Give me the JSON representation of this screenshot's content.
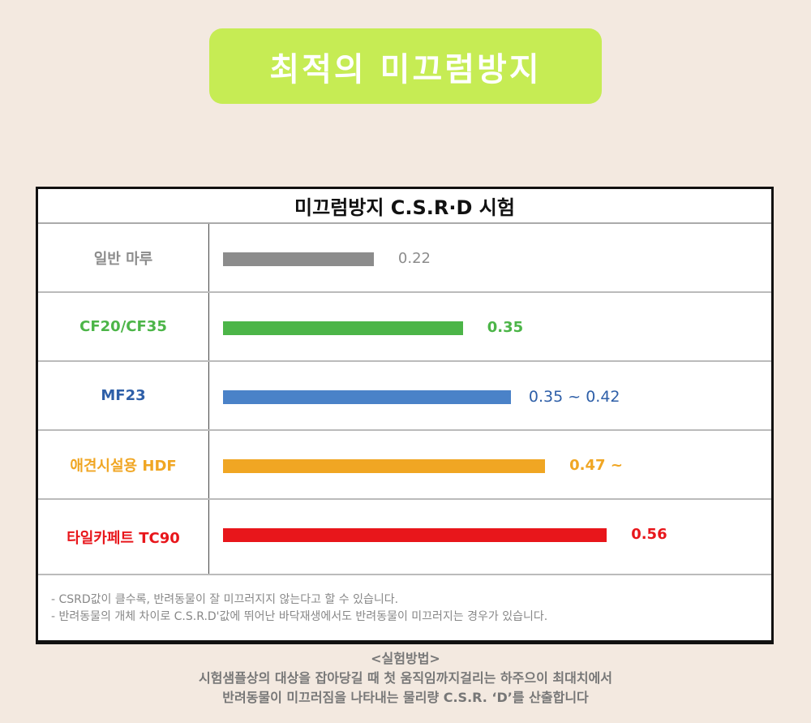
{
  "banner": {
    "title": "최적의 미끄럼방지"
  },
  "chart_data": {
    "type": "bar",
    "orientation": "horizontal",
    "title": "미끄럼방지 C.S.R·D  시험",
    "categories": [
      "일반 마루",
      "CF20/CF35",
      "MF23",
      "애견시설용 HDF",
      "타일카페트 TC90"
    ],
    "values": [
      0.22,
      0.35,
      0.42,
      0.47,
      0.56
    ],
    "data_labels": [
      "0.22",
      "0.35",
      "0.35 ~ 0.42",
      "0.47 ~",
      "0.56"
    ],
    "colors": [
      "#8c8c8c",
      "#4cb548",
      "#4a82c8",
      "#f0a623",
      "#e8161b"
    ],
    "label_colors": [
      "#8c8c8c",
      "#4cb548",
      "#2e5fa8",
      "#f0a623",
      "#e8161b"
    ],
    "xlim": [
      0,
      1
    ]
  },
  "notes": [
    "- CSRD값이 클수록, 반려동물이 잘 미끄러지지 않는다고 할 수 있습니다.",
    "- 반려동물의 개체 차이로 C.S.R.D'값에 뛰어난 바닥재생에서도 반려동물이 미끄러지는 경우가 있습니다."
  ],
  "method": {
    "heading": "<실험방법>",
    "line1": "시험샘플상의 대상을 잡아당길 때 첫 움직임까지걸리는 하주으이 최대치에서",
    "line2": "반려동물이 미끄러짐을 나타내는 물리량 C.S.R. ‘D’를 산출합니다"
  }
}
